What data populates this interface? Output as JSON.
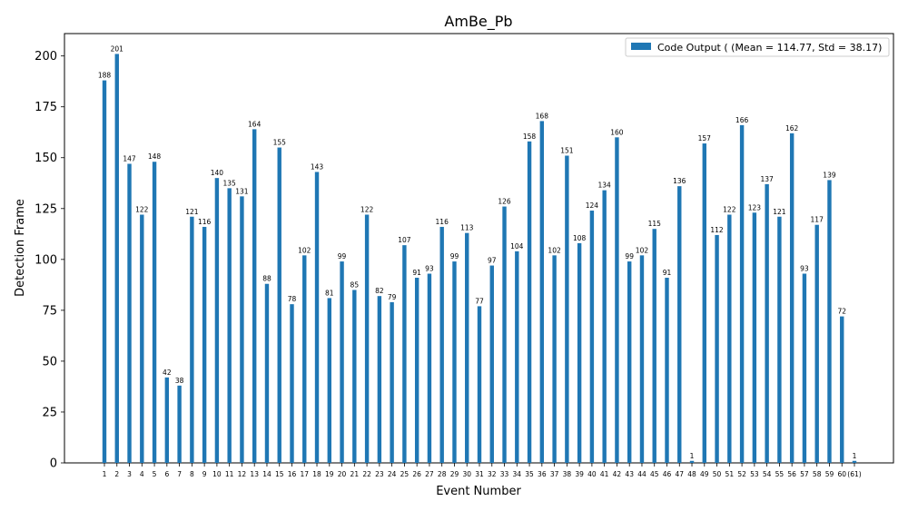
{
  "chart_data": {
    "type": "bar",
    "title": "AmBe_Pb",
    "xlabel": "Event Number",
    "ylabel": "Detection Frame",
    "ylim": [
      0,
      211
    ],
    "yticks": [
      0,
      25,
      50,
      75,
      100,
      125,
      150,
      175,
      200
    ],
    "grid": false,
    "legend_position": "top-right",
    "bar_color": "#1f77b4",
    "series": [
      {
        "name": "Code Output ( (Mean = 114.77, Std = 38.17)",
        "values": [
          188,
          201,
          147,
          122,
          148,
          42,
          38,
          121,
          116,
          140,
          135,
          131,
          164,
          88,
          155,
          78,
          102,
          143,
          81,
          99,
          85,
          122,
          82,
          79,
          107,
          91,
          93,
          116,
          99,
          113,
          77,
          97,
          126,
          104,
          158,
          168,
          102,
          151,
          108,
          124,
          134,
          160,
          99,
          102,
          115,
          91,
          136,
          1,
          157,
          112,
          122,
          166,
          123,
          137,
          121,
          162,
          93,
          117,
          139,
          72,
          1
        ]
      }
    ],
    "categories": [
      "1",
      "2",
      "3",
      "4",
      "5",
      "6",
      "7",
      "8",
      "9",
      "10",
      "11",
      "12",
      "13",
      "14",
      "15",
      "16",
      "17",
      "18",
      "19",
      "20",
      "21",
      "22",
      "23",
      "24",
      "25",
      "26",
      "27",
      "28",
      "29",
      "30",
      "31",
      "32",
      "33",
      "34",
      "35",
      "36",
      "37",
      "38",
      "39",
      "40",
      "41",
      "42",
      "43",
      "44",
      "45",
      "46",
      "47",
      "48",
      "49",
      "50",
      "51",
      "52",
      "53",
      "54",
      "55",
      "56",
      "57",
      "58",
      "59",
      "60",
      "(61)"
    ]
  }
}
